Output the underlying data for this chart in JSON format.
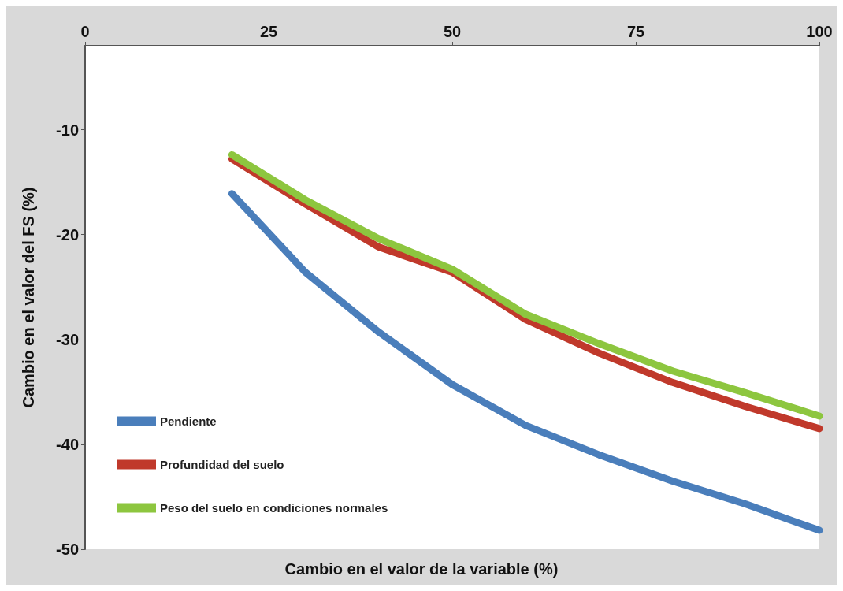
{
  "chart_data": {
    "type": "line",
    "xlabel": "Cambio en el valor de la variable (%)",
    "ylabel": "Cambio en el valor del FS (%)",
    "x": [
      20,
      30,
      40,
      50,
      60,
      70,
      80,
      90,
      100
    ],
    "series": [
      {
        "name": "Pendiente",
        "color": "#4a7ebb",
        "values": [
          -16.1,
          -23.6,
          -29.3,
          -34.3,
          -38.2,
          -41,
          -43.5,
          -45.7,
          -48.2
        ]
      },
      {
        "name": "Profundidad del suelo",
        "color": "#c0392b",
        "values": [
          -12.8,
          -17.1,
          -21.2,
          -23.6,
          -28.1,
          -31.3,
          -34.1,
          -36.4,
          -38.5
        ]
      },
      {
        "name": "Peso del suelo en condiciones normales",
        "color": "#8dc63f",
        "values": [
          -12.4,
          -16.7,
          -20.4,
          -23.3,
          -27.6,
          -30.4,
          -33,
          -35.1,
          -37.3
        ]
      }
    ],
    "xlim": [
      0,
      100
    ],
    "xticks": [
      0,
      25,
      50,
      75,
      100
    ],
    "ylim": [
      -50,
      -2
    ],
    "yticks": [
      -50,
      -40,
      -30,
      -20,
      -10
    ],
    "grid": false,
    "legend": "bottom left",
    "marker": "none",
    "line_style": "solid"
  }
}
